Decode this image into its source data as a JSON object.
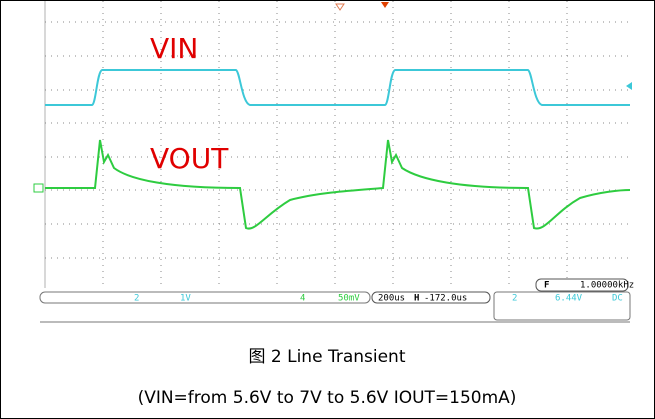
{
  "labels": {
    "vin": "VIN",
    "vout": "VOUT"
  },
  "status": {
    "freq_badge": "F",
    "freq": "1.00000kHz",
    "ch2_badge": "2",
    "ch2_scale": "1V",
    "ch4_badge": "4",
    "ch4_scale": "50mV",
    "timebase": "200us",
    "delay_badge": "H",
    "delay": "-172.0us",
    "meas_badge": "2",
    "meas": "6.44V",
    "coupling": "DC"
  },
  "caption": {
    "title": "图 2 Line Transient",
    "conditions": "(VIN=from 5.6V to 7V to 5.6V IOUT=150mA)"
  }
}
